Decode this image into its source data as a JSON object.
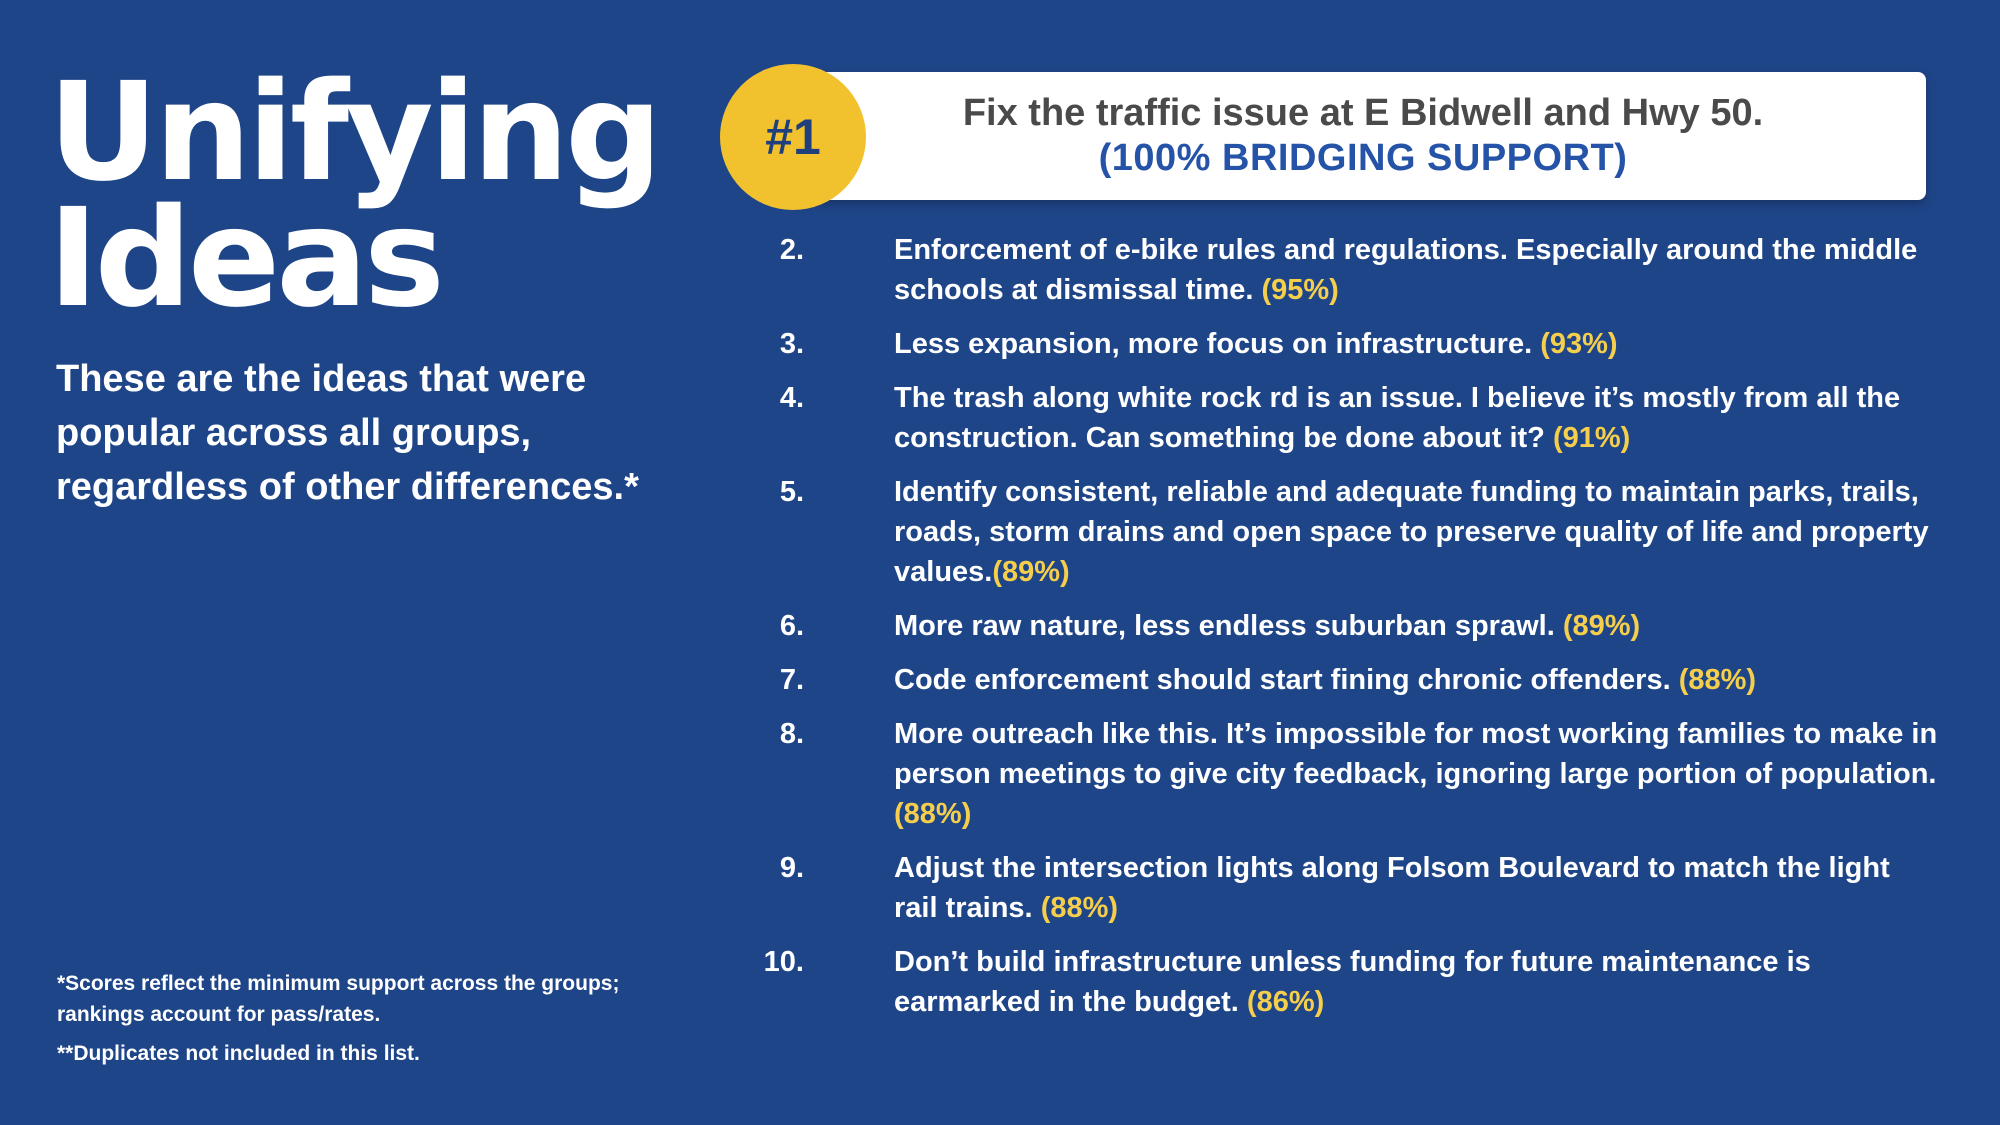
{
  "left": {
    "title_line1": "Unifying",
    "title_line2": "Ideas",
    "subtitle": "These are the ideas that were popular across all groups, regardless of other differences.*"
  },
  "footnotes": {
    "note1": "*Scores reflect the minimum support across the groups; rankings account for pass/rates.",
    "note2": "**Duplicates not included in this list."
  },
  "top_idea": {
    "badge": "#1",
    "text": "Fix the traffic issue at E Bidwell and Hwy 50.",
    "support": "(100% BRIDGING SUPPORT)"
  },
  "colors": {
    "background": "#1f4589",
    "badge": "#f2c12e",
    "percent": "#f5cf4c",
    "support_blue": "#2453a8"
  },
  "ideas": [
    {
      "num": "2.",
      "text": "Enforcement of e-bike rules and regulations. Especially around the middle schools at dismissal time.",
      "pct": "(95%)"
    },
    {
      "num": "3.",
      "text": "Less expansion, more focus on infrastructure.",
      "pct": "(93%)"
    },
    {
      "num": "4.",
      "text": "The trash along white rock rd is an issue. I believe it’s mostly from all the construction. Can something be done about it?",
      "pct": "(91%)"
    },
    {
      "num": "5.",
      "text": "Identify consistent, reliable and adequate funding to maintain parks, trails, roads, storm drains and open space to preserve quality of life and property values.",
      "pct": "(89%)"
    },
    {
      "num": "6.",
      "text": "More raw nature, less endless suburban sprawl.",
      "pct": "(89%)"
    },
    {
      "num": "7.",
      "text": "Code enforcement should start fining chronic offenders.",
      "pct": "(88%)"
    },
    {
      "num": "8.",
      "text": "More outreach like this. It’s impossible for most working families to make in person meetings to give city feedback, ignoring large portion of population.",
      "pct": "(88%)"
    },
    {
      "num": "9.",
      "text": "Adjust the intersection lights along Folsom Boulevard to match the light rail trains.",
      "pct": "(88%)"
    },
    {
      "num": "10.",
      "text": "Don’t build infrastructure unless funding for future maintenance is earmarked in the budget.",
      "pct": "(86%)"
    }
  ]
}
